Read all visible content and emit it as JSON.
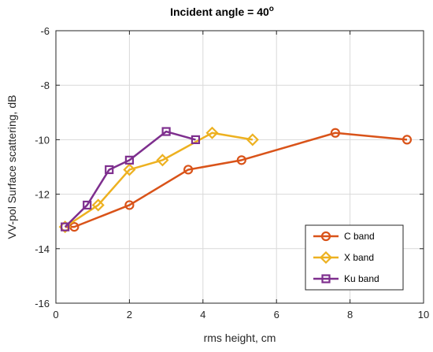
{
  "chart_data": {
    "type": "line",
    "title": "Incident angle = 40",
    "title_superscript": "o",
    "xlabel": "rms height, cm",
    "ylabel": "VV-pol Surface scattering, dB",
    "xlim": [
      0,
      10
    ],
    "ylim": [
      -16,
      -6
    ],
    "xticks": [
      0,
      2,
      4,
      6,
      8,
      10
    ],
    "yticks": [
      -6,
      -8,
      -10,
      -12,
      -14,
      -16
    ],
    "xtick_labels": [
      "0",
      "2",
      "4",
      "6",
      "8",
      "10"
    ],
    "ytick_labels": [
      "-6",
      "-8",
      "-10",
      "-12",
      "-14",
      "-16"
    ],
    "grid": true,
    "legend_position": "bottom-right",
    "series": [
      {
        "name": "C band",
        "marker": "circle",
        "color": "#D95319",
        "x": [
          0.25,
          0.5,
          2.0,
          3.6,
          5.05,
          7.6,
          9.55
        ],
        "y": [
          -13.2,
          -13.2,
          -12.4,
          -11.1,
          -10.75,
          -9.75,
          -10.0
        ]
      },
      {
        "name": "X band",
        "marker": "diamond",
        "color": "#EDB120",
        "x": [
          0.25,
          1.15,
          2.0,
          2.9,
          4.25,
          5.35
        ],
        "y": [
          -13.2,
          -12.4,
          -11.1,
          -10.75,
          -9.75,
          -10.0
        ]
      },
      {
        "name": "Ku band",
        "marker": "square",
        "color": "#7E2F8E",
        "x": [
          0.25,
          0.85,
          1.45,
          2.0,
          3.0,
          3.8
        ],
        "y": [
          -13.2,
          -12.4,
          -11.1,
          -10.75,
          -9.7,
          -10.0
        ]
      }
    ]
  }
}
